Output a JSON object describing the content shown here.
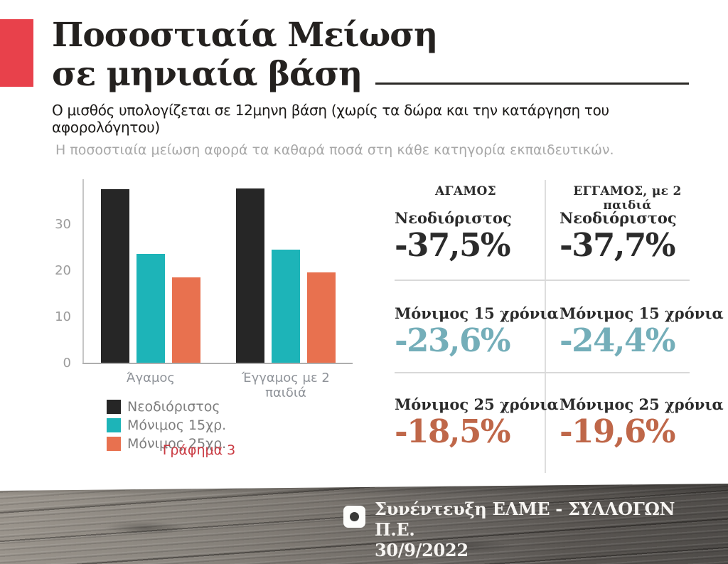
{
  "colors": {
    "accent_red": "#e8414b",
    "caption_red": "#ca3a42",
    "value_dark": "#2b2b2b",
    "value_teal": "#74aeb9",
    "value_orange": "#bf6749"
  },
  "header": {
    "title_line1": "Ποσοστιαία Μείωση",
    "title_line2": "σε μηνιαία βάση",
    "subtitle": "Ο μισθός υπολογίζεται σε 12μηνη βάση (χωρίς τα δώρα και την κατάργηση του αφορολόγητου)",
    "note": "Η ποσοστιαία μείωση αφορά τα καθαρά ποσά στη κάθε κατηγορία εκπαιδευτικών."
  },
  "chart_data": {
    "type": "bar",
    "title": "",
    "categories": [
      "Άγαμος",
      "Έγγαμος με 2 παιδιά"
    ],
    "series": [
      {
        "name": "Νεοδιόριστος",
        "color": "#262626",
        "values": [
          37.5,
          37.7
        ]
      },
      {
        "name": "Μόνιμος 15χρ.",
        "color": "#1db4b8",
        "values": [
          23.6,
          24.4
        ]
      },
      {
        "name": "Μόνιμος 25χρ.",
        "color": "#e8714f",
        "values": [
          18.5,
          19.6
        ]
      }
    ],
    "ylabel": "",
    "xlabel": "",
    "ylim": [
      0,
      40
    ],
    "yticks": [
      0,
      10,
      20,
      30
    ],
    "grid": false,
    "legend_position": "bottom",
    "caption": "Γράφημα 3"
  },
  "stats": {
    "columns": [
      {
        "header": "ΑΓΑΜΟΣ",
        "rows": [
          {
            "label": "Νεοδιόριστος",
            "value": "-37,5%",
            "color": "#2b2b2b"
          },
          {
            "label": "Μόνιμος 15 χρόνια",
            "value": "-23,6%",
            "color": "#74aeb9"
          },
          {
            "label": "Μόνιμος 25 χρόνια",
            "value": "-18,5%",
            "color": "#bf6749"
          }
        ]
      },
      {
        "header": "ΕΓΓΑΜΟΣ, με 2 παιδιά",
        "rows": [
          {
            "label": "Νεοδιόριστος",
            "value": "-37,7%",
            "color": "#2b2b2b"
          },
          {
            "label": "Μόνιμος 15 χρόνια",
            "value": "-24,4%",
            "color": "#74aeb9"
          },
          {
            "label": "Μόνιμος 25 χρόνια",
            "value": "-19,6%",
            "color": "#bf6749"
          }
        ]
      }
    ]
  },
  "footer": {
    "line1": "Συνέντευξη ΕΛΜΕ - ΣΥΛΛΟΓΩΝ Π.Ε.",
    "line2": "30/9/2022"
  }
}
